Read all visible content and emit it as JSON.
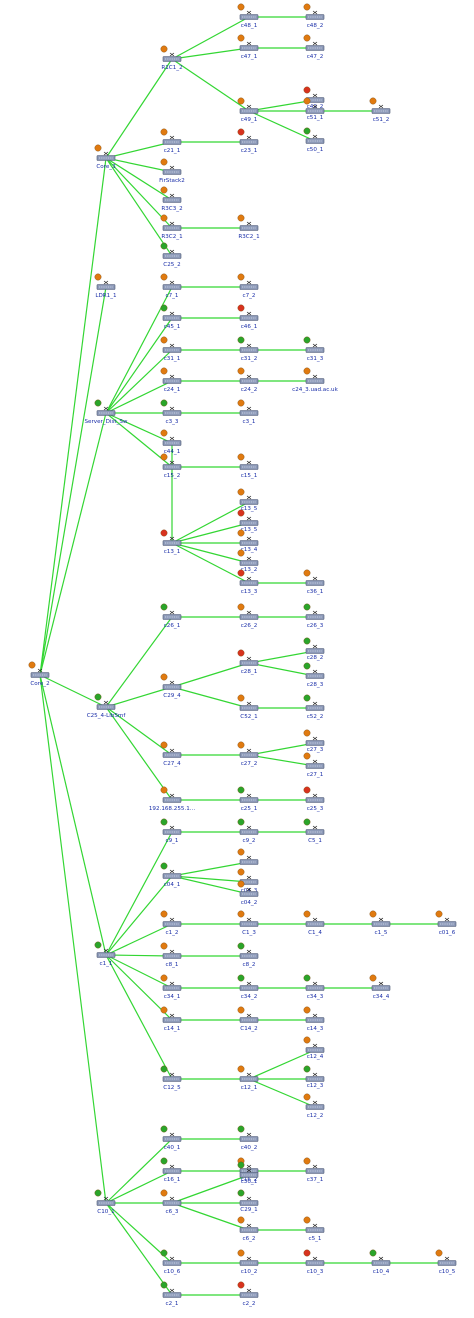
{
  "diagram": {
    "colors": {
      "edge": "#33d633",
      "label": "#1a2ea8",
      "ok": "#2aa52a",
      "warn": "#e07a10",
      "crit": "#d8321e"
    },
    "nodes": [
      {
        "id": "Core_2",
        "label": "Core_2",
        "status": "warn"
      },
      {
        "id": "Core_3",
        "label": "Core_3",
        "status": "warn"
      },
      {
        "id": "R1C1_2",
        "label": "R1C1_2",
        "status": "warn"
      },
      {
        "id": "c48_1",
        "label": "c48_1",
        "status": "warn"
      },
      {
        "id": "c48_2",
        "label": "c48_2",
        "status": "warn"
      },
      {
        "id": "c47_1",
        "label": "c47_1",
        "status": "warn"
      },
      {
        "id": "c47_2",
        "label": "c47_2",
        "status": "warn"
      },
      {
        "id": "c49_1",
        "label": "c49_1",
        "status": "warn"
      },
      {
        "id": "c49_2",
        "label": "c49_2",
        "status": "crit"
      },
      {
        "id": "c51_1",
        "label": "c51_1",
        "status": "warn"
      },
      {
        "id": "c51_2",
        "label": "c51_2",
        "status": "warn"
      },
      {
        "id": "c50_1",
        "label": "c50_1",
        "status": "ok"
      },
      {
        "id": "c21_1",
        "label": "c21_1",
        "status": "warn"
      },
      {
        "id": "c23_1",
        "label": "c23_1",
        "status": "crit"
      },
      {
        "id": "FirStack2",
        "label": "FirStack2",
        "status": "warn"
      },
      {
        "id": "R3C3_2",
        "label": "R3C3_2",
        "status": "warn"
      },
      {
        "id": "R3C2_1",
        "label": "R3C2_1",
        "status": "warn"
      },
      {
        "id": "R3C2_1b",
        "label": "R3C2_1",
        "status": "warn"
      },
      {
        "id": "C25_2",
        "label": "C25_2",
        "status": "ok"
      },
      {
        "id": "LDR1_1",
        "label": "LDR1_1",
        "status": "warn"
      },
      {
        "id": "Server_Distr_Sw",
        "label": "Server_Dist_Sw",
        "status": "ok"
      },
      {
        "id": "c7_1",
        "label": "c7_1",
        "status": "warn"
      },
      {
        "id": "c7_2",
        "label": "c7_2",
        "status": "warn"
      },
      {
        "id": "c45_1",
        "label": "c45_1",
        "status": "ok"
      },
      {
        "id": "c46_1",
        "label": "c46_1",
        "status": "crit"
      },
      {
        "id": "c31_1",
        "label": "c31_1",
        "status": "warn"
      },
      {
        "id": "c31_2",
        "label": "c31_2",
        "status": "ok"
      },
      {
        "id": "c31_3",
        "label": "c31_3",
        "status": "ok"
      },
      {
        "id": "c24_1",
        "label": "c24_1",
        "status": "warn"
      },
      {
        "id": "c24_2",
        "label": "c24_2",
        "status": "warn"
      },
      {
        "id": "c24_3",
        "label": "c24_3.uad.ac.uk",
        "status": "warn"
      },
      {
        "id": "c3_3",
        "label": "c3_3",
        "status": "ok"
      },
      {
        "id": "c3_1",
        "label": "c3_1",
        "status": "warn"
      },
      {
        "id": "c44_1",
        "label": "c44_1",
        "status": "warn"
      },
      {
        "id": "c15_2",
        "label": "c15_2",
        "status": "warn"
      },
      {
        "id": "c15_1",
        "label": "c15_1",
        "status": "warn"
      },
      {
        "id": "c13_1",
        "label": "c13_1",
        "status": "crit"
      },
      {
        "id": "c13_5",
        "label": "c13_5",
        "status": "warn"
      },
      {
        "id": "c13_4x",
        "label": "c13_5",
        "status": "crit"
      },
      {
        "id": "c13_4",
        "label": "c13_4",
        "status": "warn"
      },
      {
        "id": "c13_2",
        "label": "c13_2",
        "status": "warn"
      },
      {
        "id": "c13_3",
        "label": "c13_3",
        "status": "crit"
      },
      {
        "id": "c36_1",
        "label": "c36_1",
        "status": "warn"
      },
      {
        "id": "C25_4",
        "label": "C25_4-LibSmf",
        "status": "ok"
      },
      {
        "id": "c26_1",
        "label": "c26_1",
        "status": "ok"
      },
      {
        "id": "c26_2",
        "label": "c26_2",
        "status": "warn"
      },
      {
        "id": "c26_3",
        "label": "c26_3",
        "status": "ok"
      },
      {
        "id": "C29_4",
        "label": "C29_4",
        "status": "warn"
      },
      {
        "id": "c28_1",
        "label": "c28_1",
        "status": "crit"
      },
      {
        "id": "c28_2",
        "label": "c28_2",
        "status": "ok"
      },
      {
        "id": "c28_3",
        "label": "c28_3",
        "status": "ok"
      },
      {
        "id": "C52_1",
        "label": "C52_1",
        "status": "warn"
      },
      {
        "id": "c52_2",
        "label": "c52_2",
        "status": "ok"
      },
      {
        "id": "C27_4",
        "label": "C27_4",
        "status": "warn"
      },
      {
        "id": "c27_2",
        "label": "c27_2",
        "status": "warn"
      },
      {
        "id": "c27_3",
        "label": "c27_3",
        "status": "warn"
      },
      {
        "id": "c27_1",
        "label": "c27_1",
        "status": "warn"
      },
      {
        "id": "ip192",
        "label": "192.168.255.1...",
        "status": "warn"
      },
      {
        "id": "c25_1",
        "label": "c25_1",
        "status": "ok"
      },
      {
        "id": "c25_3",
        "label": "c25_3",
        "status": "crit"
      },
      {
        "id": "c1_1",
        "label": "c1_1",
        "status": "ok"
      },
      {
        "id": "c9_1",
        "label": "c9_1",
        "status": "ok"
      },
      {
        "id": "c9_2",
        "label": "c9_2",
        "status": "ok"
      },
      {
        "id": "C5_1",
        "label": "C5_1",
        "status": "ok"
      },
      {
        "id": "c04_1",
        "label": "c04_1",
        "status": "ok"
      },
      {
        "id": "c04_3",
        "label": "c04_3",
        "status": "warn"
      },
      {
        "id": "c04_3b",
        "label": "",
        "status": "warn"
      },
      {
        "id": "c04_2",
        "label": "c04_2",
        "status": "warn"
      },
      {
        "id": "c1_2",
        "label": "c1_2",
        "status": "warn"
      },
      {
        "id": "c1_3",
        "label": "C1_3",
        "status": "warn"
      },
      {
        "id": "c1_4",
        "label": "C1_4",
        "status": "warn"
      },
      {
        "id": "c1_5",
        "label": "c1_5",
        "status": "warn"
      },
      {
        "id": "c01_6",
        "label": "c01_6",
        "status": "warn"
      },
      {
        "id": "c8_1",
        "label": "c8_1",
        "status": "warn"
      },
      {
        "id": "c8_2",
        "label": "c8_2",
        "status": "ok"
      },
      {
        "id": "c34_1",
        "label": "c34_1",
        "status": "warn"
      },
      {
        "id": "c34_2",
        "label": "c34_2",
        "status": "ok"
      },
      {
        "id": "c34_3",
        "label": "c34_3",
        "status": "ok"
      },
      {
        "id": "c34_4",
        "label": "c34_4",
        "status": "warn"
      },
      {
        "id": "c14_1",
        "label": "c14_1",
        "status": "warn"
      },
      {
        "id": "C14_2",
        "label": "C14_2",
        "status": "warn"
      },
      {
        "id": "c14_3",
        "label": "c14_3",
        "status": "warn"
      },
      {
        "id": "C12_5",
        "label": "C12_5",
        "status": "ok"
      },
      {
        "id": "c12_1",
        "label": "c12_1",
        "status": "warn"
      },
      {
        "id": "c12_4",
        "label": "c12_4",
        "status": "warn"
      },
      {
        "id": "c12_3",
        "label": "c12_3",
        "status": "ok"
      },
      {
        "id": "c12_2",
        "label": "c12_2",
        "status": "warn"
      },
      {
        "id": "c40_1",
        "label": "c40_1",
        "status": "ok"
      },
      {
        "id": "c40_2",
        "label": "c40_2",
        "status": "ok"
      },
      {
        "id": "c16_1",
        "label": "c16_1",
        "status": "ok"
      },
      {
        "id": "c16_2",
        "label": "c16_2",
        "status": "warn"
      },
      {
        "id": "c37_1",
        "label": "c37_1",
        "status": "warn"
      },
      {
        "id": "C10_1",
        "label": "C10_1",
        "status": "ok"
      },
      {
        "id": "c6_3",
        "label": "c6_3",
        "status": "warn"
      },
      {
        "id": "c30_1",
        "label": "c30_1",
        "status": "ok"
      },
      {
        "id": "c29_1",
        "label": "C29_1",
        "status": "ok"
      },
      {
        "id": "c6_2",
        "label": "c6_2",
        "status": "warn"
      },
      {
        "id": "c5_1",
        "label": "c5_1",
        "status": "warn"
      },
      {
        "id": "c10_6",
        "label": "c10_6",
        "status": "ok"
      },
      {
        "id": "c10_2",
        "label": "c10_2",
        "status": "warn"
      },
      {
        "id": "c10_3",
        "label": "c10_3",
        "status": "crit"
      },
      {
        "id": "c10_4",
        "label": "c10_4",
        "status": "ok"
      },
      {
        "id": "c10_5",
        "label": "c10_5",
        "status": "warn"
      },
      {
        "id": "c2_1",
        "label": "c2_1",
        "status": "ok"
      },
      {
        "id": "c2_2",
        "label": "c2_2",
        "status": "crit"
      }
    ],
    "edges": [
      [
        "Core_2",
        "Core_3"
      ],
      [
        "Core_2",
        "LDR1_1"
      ],
      [
        "Core_2",
        "Server_Distr_Sw"
      ],
      [
        "Core_2",
        "C25_4"
      ],
      [
        "Core_2",
        "c1_1"
      ],
      [
        "Core_2",
        "C10_1"
      ],
      [
        "Core_3",
        "R1C1_2"
      ],
      [
        "Core_3",
        "c21_1"
      ],
      [
        "Core_3",
        "FirStack2"
      ],
      [
        "Core_3",
        "R3C3_2"
      ],
      [
        "Core_3",
        "R3C2_1"
      ],
      [
        "Core_3",
        "C25_2"
      ],
      [
        "R1C1_2",
        "c48_1"
      ],
      [
        "R1C1_2",
        "c47_1"
      ],
      [
        "R1C1_2",
        "c49_1"
      ],
      [
        "c48_1",
        "c48_2"
      ],
      [
        "c47_1",
        "c47_2"
      ],
      [
        "c49_1",
        "c49_2"
      ],
      [
        "c49_1",
        "c51_1"
      ],
      [
        "c49_1",
        "c50_1"
      ],
      [
        "c51_1",
        "c51_2"
      ],
      [
        "c21_1",
        "c23_1"
      ],
      [
        "R3C2_1",
        "R3C2_1b"
      ],
      [
        "Server_Distr_Sw",
        "c7_1"
      ],
      [
        "Server_Distr_Sw",
        "c45_1"
      ],
      [
        "Server_Distr_Sw",
        "c31_1"
      ],
      [
        "Server_Distr_Sw",
        "c24_1"
      ],
      [
        "Server_Distr_Sw",
        "c3_3"
      ],
      [
        "Server_Distr_Sw",
        "c44_1"
      ],
      [
        "Server_Distr_Sw",
        "c15_2"
      ],
      [
        "c7_1",
        "c7_2"
      ],
      [
        "c45_1",
        "c46_1"
      ],
      [
        "c31_1",
        "c31_2"
      ],
      [
        "c31_2",
        "c31_3"
      ],
      [
        "c24_1",
        "c24_2"
      ],
      [
        "c24_2",
        "c24_3"
      ],
      [
        "c3_3",
        "c3_1"
      ],
      [
        "c15_2",
        "c15_1"
      ],
      [
        "c44_1",
        "c13_1"
      ],
      [
        "c13_1",
        "c13_5"
      ],
      [
        "c13_1",
        "c13_4x"
      ],
      [
        "c13_1",
        "c13_4"
      ],
      [
        "c13_1",
        "c13_2"
      ],
      [
        "c13_1",
        "c13_3"
      ],
      [
        "c13_3",
        "c36_1"
      ],
      [
        "C25_4",
        "c26_1"
      ],
      [
        "C25_4",
        "C29_4"
      ],
      [
        "C25_4",
        "C27_4"
      ],
      [
        "C25_4",
        "ip192"
      ],
      [
        "c26_1",
        "c26_2"
      ],
      [
        "c26_2",
        "c26_3"
      ],
      [
        "C29_4",
        "c28_1"
      ],
      [
        "C29_4",
        "C52_1"
      ],
      [
        "c28_1",
        "c28_2"
      ],
      [
        "c28_1",
        "c28_3"
      ],
      [
        "C52_1",
        "c52_2"
      ],
      [
        "C27_4",
        "c27_2"
      ],
      [
        "c27_2",
        "c27_3"
      ],
      [
        "c27_2",
        "c27_1"
      ],
      [
        "ip192",
        "c25_1"
      ],
      [
        "c25_1",
        "c25_3"
      ],
      [
        "c1_1",
        "c9_1"
      ],
      [
        "c1_1",
        "c04_1"
      ],
      [
        "c1_1",
        "c1_2"
      ],
      [
        "c1_1",
        "c8_1"
      ],
      [
        "c1_1",
        "c34_1"
      ],
      [
        "c1_1",
        "c14_1"
      ],
      [
        "c1_1",
        "C12_5"
      ],
      [
        "c9_1",
        "c9_2"
      ],
      [
        "c9_2",
        "C5_1"
      ],
      [
        "c04_1",
        "c04_3b"
      ],
      [
        "c04_1",
        "c04_3"
      ],
      [
        "c04_1",
        "c04_2"
      ],
      [
        "c1_2",
        "c1_3"
      ],
      [
        "c1_3",
        "c1_4"
      ],
      [
        "c1_4",
        "c1_5"
      ],
      [
        "c1_5",
        "c01_6"
      ],
      [
        "c8_1",
        "c8_2"
      ],
      [
        "c34_1",
        "c34_2"
      ],
      [
        "c34_2",
        "c34_3"
      ],
      [
        "c34_3",
        "c34_4"
      ],
      [
        "c14_1",
        "C14_2"
      ],
      [
        "C14_2",
        "c14_3"
      ],
      [
        "C12_5",
        "c12_1"
      ],
      [
        "c12_1",
        "c12_4"
      ],
      [
        "c12_1",
        "c12_3"
      ],
      [
        "c12_1",
        "c12_2"
      ],
      [
        "C10_1",
        "c40_1"
      ],
      [
        "C10_1",
        "c16_1"
      ],
      [
        "C10_1",
        "c6_3"
      ],
      [
        "C10_1",
        "c10_6"
      ],
      [
        "C10_1",
        "c2_1"
      ],
      [
        "c40_1",
        "c40_2"
      ],
      [
        "c16_1",
        "c16_2"
      ],
      [
        "c16_2",
        "c37_1"
      ],
      [
        "c6_3",
        "c30_1"
      ],
      [
        "c6_3",
        "c29_1"
      ],
      [
        "c6_3",
        "c6_2"
      ],
      [
        "c6_2",
        "c5_1"
      ],
      [
        "c10_6",
        "c10_2"
      ],
      [
        "c10_2",
        "c10_3"
      ],
      [
        "c10_3",
        "c10_4"
      ],
      [
        "c10_4",
        "c10_5"
      ],
      [
        "c2_1",
        "c2_2"
      ]
    ]
  }
}
